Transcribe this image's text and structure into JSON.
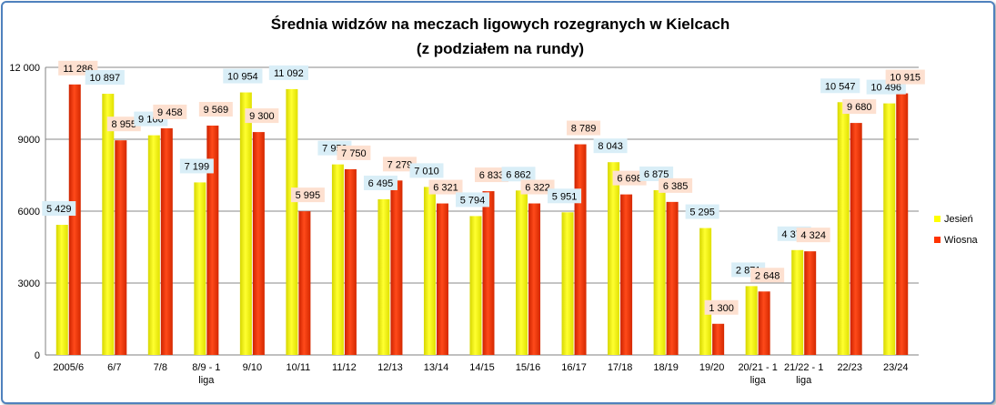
{
  "chart_data": {
    "type": "bar",
    "title": "Średnia widzów na meczach ligowych rozegranych w Kielcach",
    "subtitle": "(z podziałem na rundy)",
    "categories": [
      "2005/6",
      "6/7",
      "7/8",
      "8/9 - 1 liga",
      "9/10",
      "10/11",
      "11/12",
      "12/13",
      "13/14",
      "14/15",
      "15/16",
      "16/17",
      "17/18",
      "18/19",
      "19/20",
      "20/21 - 1 liga",
      "21/22 - 1 liga",
      "22/23",
      "23/24"
    ],
    "series": [
      {
        "name": "Jesień",
        "color": "#ffff00",
        "values": [
          5429,
          10897,
          9166,
          7199,
          10954,
          11092,
          7950,
          6495,
          7010,
          5794,
          6862,
          5951,
          8043,
          6875,
          5295,
          2871,
          4375,
          10547,
          10496
        ]
      },
      {
        "name": "Wiosna",
        "color": "#ff3300",
        "values": [
          11286,
          8955,
          9458,
          9569,
          9300,
          5995,
          7750,
          7279,
          6321,
          6833,
          6322,
          8789,
          6698,
          6385,
          1300,
          2648,
          4324,
          9680,
          10915
        ]
      }
    ],
    "data_labels": [
      [
        "5 429",
        "10 897",
        "9 166",
        "7 199",
        "10 954",
        "11 092",
        "7 950",
        "6 495",
        "7 010",
        "5 794",
        "6 862",
        "5 951",
        "8 043",
        "6 875",
        "5 295",
        "2 871",
        "4 375",
        "10 547",
        "10 496"
      ],
      [
        "11 286",
        "8 955",
        "9 458",
        "9 569",
        "9 300",
        "5 995",
        "7 750",
        "7 279",
        "6 321",
        "6 833",
        "6 322",
        "8 789",
        "6 698",
        "6 385",
        "1 300",
        "2 648",
        "4 324",
        "9 680",
        "10 915"
      ]
    ],
    "ylim": [
      0,
      12000
    ],
    "yticks": [
      0,
      3000,
      6000,
      9000,
      12000
    ],
    "ytick_labels": [
      "0",
      "3000",
      "6000",
      "9000",
      "12 000"
    ],
    "grid": true,
    "legend_position": "right",
    "label_backgrounds": [
      "#d9eef7",
      "#fde0d0"
    ]
  }
}
